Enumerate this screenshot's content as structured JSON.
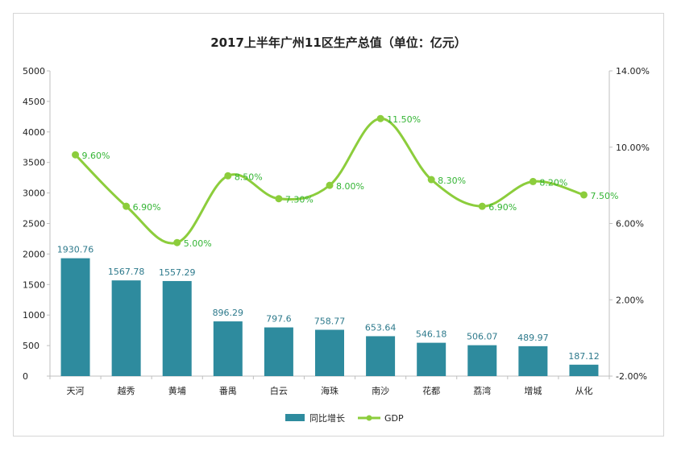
{
  "chart_data": {
    "type": "bar",
    "title": "2017上半年广州11区生产总值（单位：亿元）",
    "categories": [
      "天河",
      "越秀",
      "黄埔",
      "番禺",
      "白云",
      "海珠",
      "南沙",
      "花都",
      "荔湾",
      "增城",
      "从化"
    ],
    "series": [
      {
        "name": "同比增长",
        "type": "bar",
        "axis": "left",
        "color": "#2e8b9e",
        "values": [
          1930.76,
          1567.78,
          1557.29,
          896.29,
          797.6,
          758.77,
          653.64,
          546.18,
          506.07,
          489.97,
          187.12
        ],
        "labels": [
          "1930.76",
          "1567.78",
          "1557.29",
          "896.29",
          "797.6",
          "758.77",
          "653.64",
          "546.18",
          "506.07",
          "489.97",
          "187.12"
        ]
      },
      {
        "name": "GDP",
        "type": "line",
        "axis": "right",
        "color": "#8ccd3c",
        "values": [
          9.6,
          6.9,
          5.0,
          8.5,
          7.3,
          8.0,
          11.5,
          8.3,
          6.9,
          8.2,
          7.5
        ],
        "labels": [
          "9.60%",
          "6.90%",
          "5.00%",
          "8.50%",
          "7.30%",
          "8.00%",
          "11.50%",
          "8.30%",
          "6.90%",
          "8.20%",
          "7.50%"
        ]
      }
    ],
    "y_left": {
      "lim": [
        0,
        5000
      ],
      "ticks": [
        "0",
        "500",
        "1000",
        "1500",
        "2000",
        "2500",
        "3000",
        "3500",
        "4000",
        "4500",
        "5000"
      ]
    },
    "y_right": {
      "lim": [
        -2,
        14
      ],
      "ticks": [
        "-2.00%",
        "2.00%",
        "6.00%",
        "10.00%",
        "14.00%"
      ]
    },
    "grid": false,
    "legend": "bottom"
  }
}
